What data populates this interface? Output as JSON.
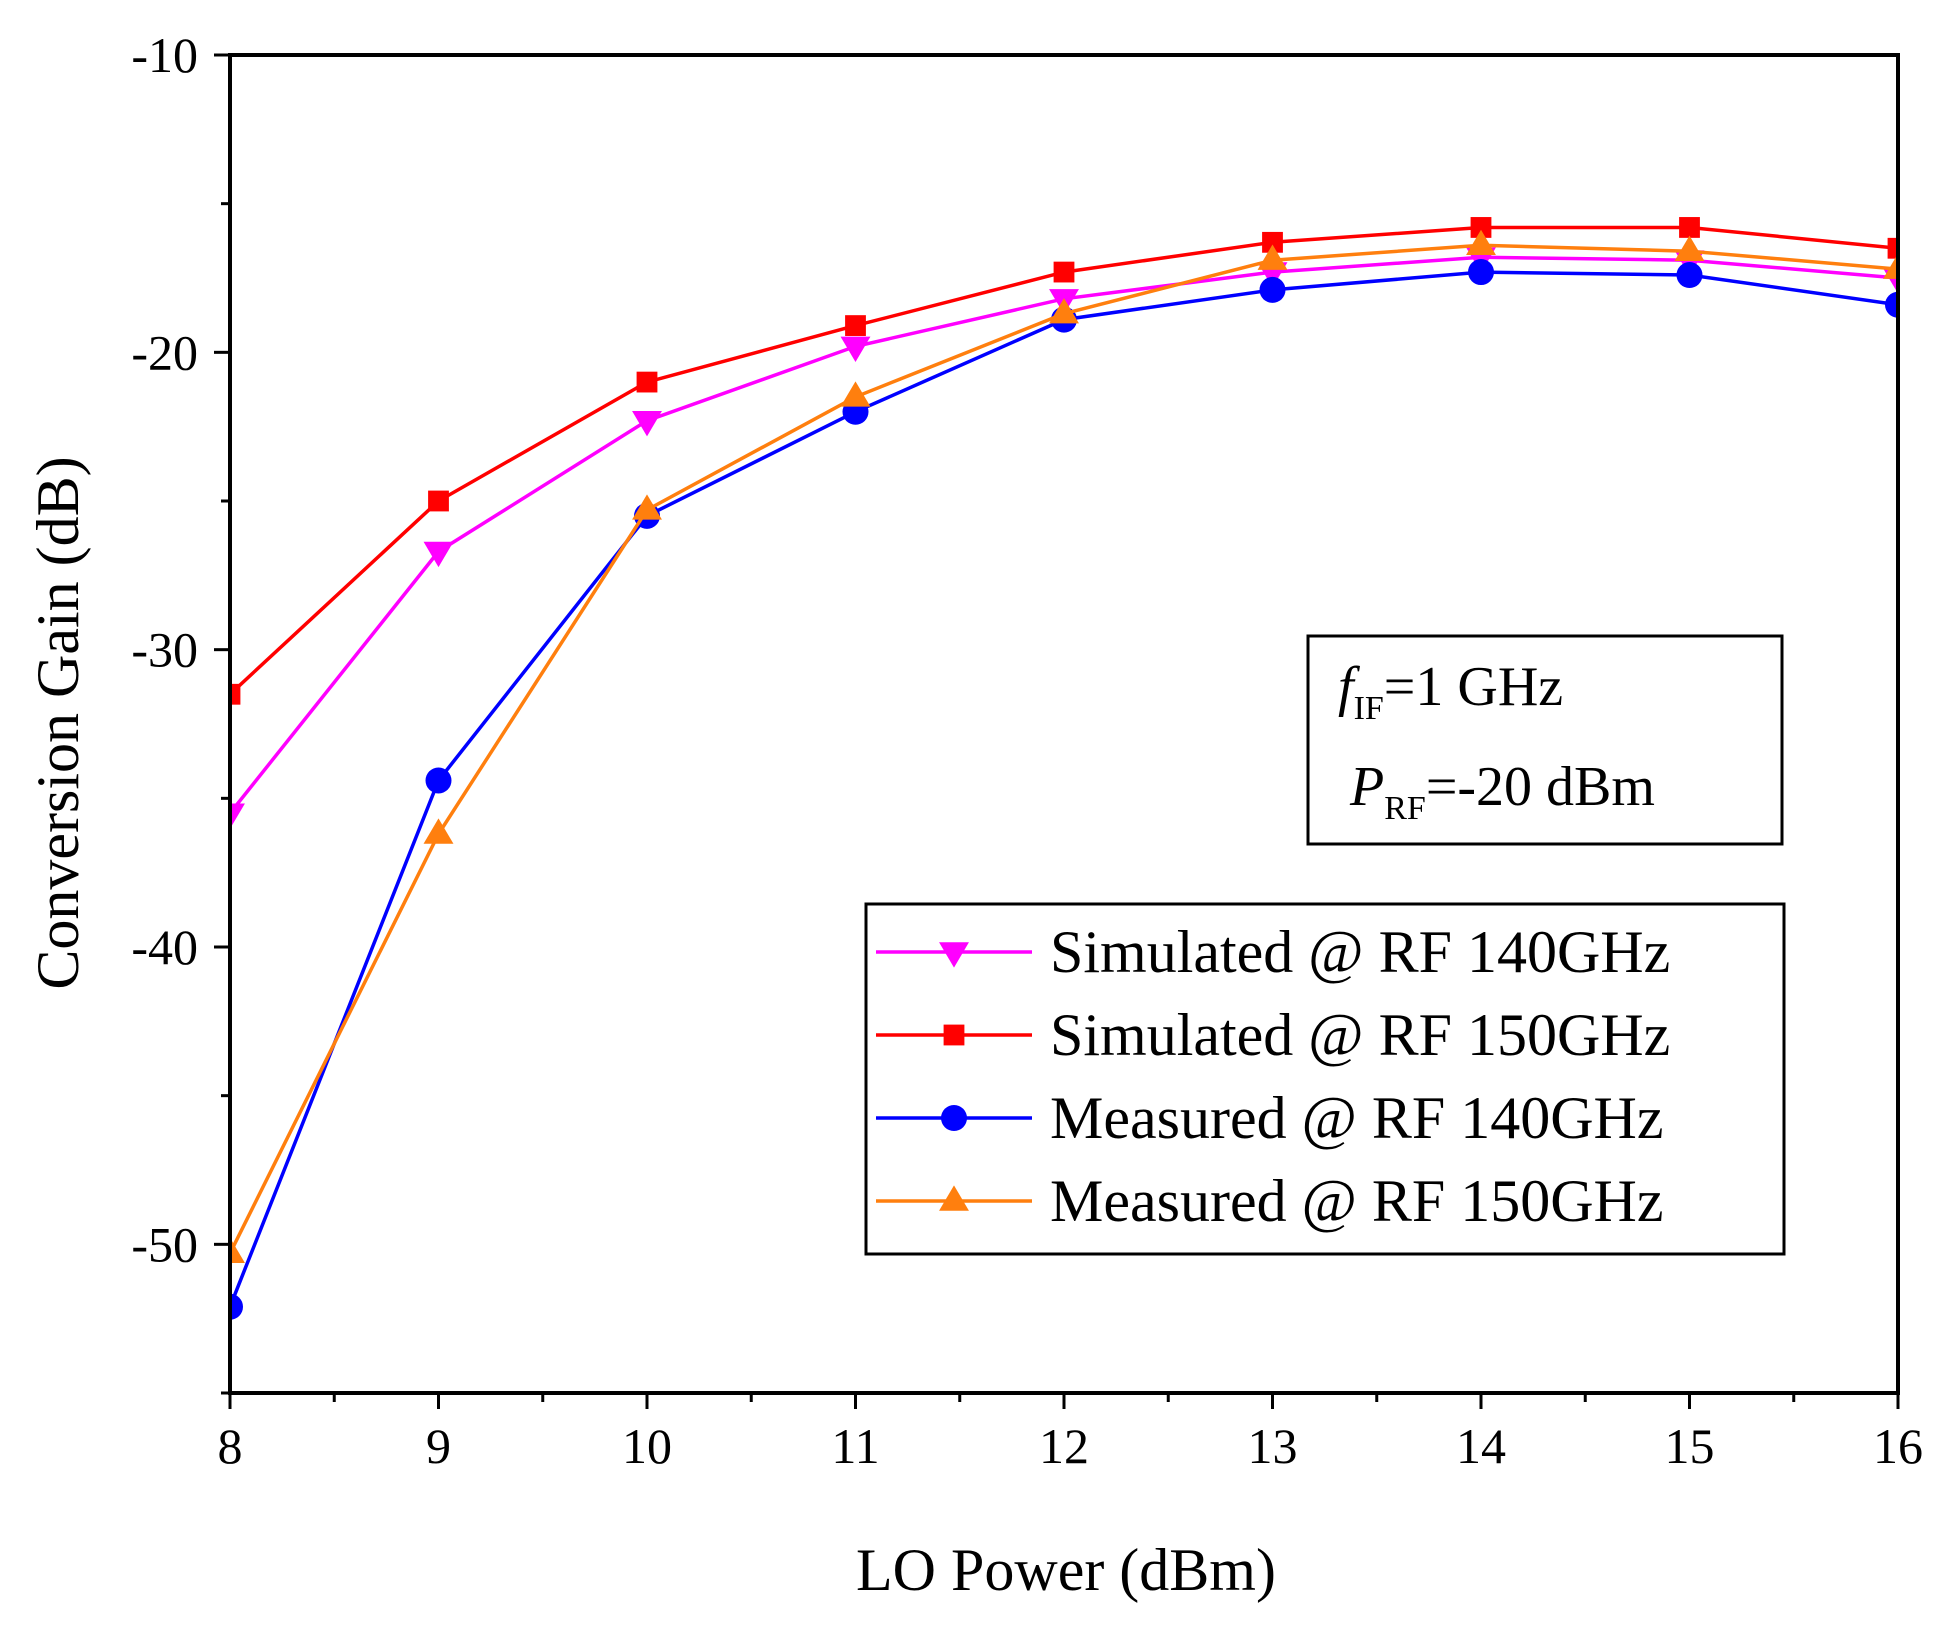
{
  "chart_data": {
    "type": "line",
    "title": "",
    "xlabel": "LO Power (dBm)",
    "ylabel": "Conversion Gain (dB)",
    "xlim": [
      8,
      16
    ],
    "ylim": [
      -55,
      -10
    ],
    "x_ticks": [
      8,
      9,
      10,
      11,
      12,
      13,
      14,
      15,
      16
    ],
    "y_ticks": [
      -10,
      -20,
      -30,
      -40,
      -50
    ],
    "x": [
      8,
      9,
      10,
      11,
      12,
      13,
      14,
      15,
      16
    ],
    "series": [
      {
        "name": "Simulated @ RF 140GHz",
        "marker": "triangle-down",
        "color": "#ff00ff",
        "values": [
          -35.5,
          -26.7,
          -22.3,
          -19.8,
          -18.2,
          -17.3,
          -16.8,
          -16.9,
          -17.5
        ]
      },
      {
        "name": "Simulated @ RF 150GHz",
        "marker": "square",
        "color": "#ff0000",
        "values": [
          -31.5,
          -25.0,
          -21.0,
          -19.1,
          -17.3,
          -16.3,
          -15.8,
          -15.8,
          -16.5
        ]
      },
      {
        "name": "Measured @ RF 140GHz",
        "marker": "circle",
        "color": "#0000ff",
        "values": [
          -52.1,
          -34.4,
          -25.5,
          -22.0,
          -18.9,
          -17.9,
          -17.3,
          -17.4,
          -18.4
        ]
      },
      {
        "name": "Measured @ RF 150GHz",
        "marker": "triangle-up",
        "color": "#ff7f0e",
        "values": [
          -50.3,
          -36.2,
          -25.3,
          -21.5,
          -18.7,
          -16.9,
          -16.4,
          -16.6,
          -17.2
        ]
      }
    ],
    "legend_position": "bottom-right",
    "annotation": {
      "line1_symbol": "f",
      "line1_sub": "IF",
      "line1_rest": "=1 GHz",
      "line2_symbol": "P",
      "line2_sub": "RF",
      "line2_rest": "=-20 dBm"
    }
  }
}
